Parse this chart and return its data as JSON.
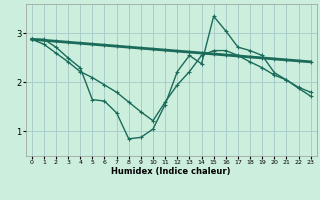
{
  "xlabel": "Humidex (Indice chaleur)",
  "bg_color": "#cceedd",
  "grid_color": "#aacccc",
  "line_color": "#1a6b5a",
  "xlim": [
    -0.5,
    23.5
  ],
  "ylim": [
    0.5,
    3.6
  ],
  "yticks": [
    1,
    2,
    3
  ],
  "xticks": [
    0,
    1,
    2,
    3,
    4,
    5,
    6,
    7,
    8,
    9,
    10,
    11,
    12,
    13,
    14,
    15,
    16,
    17,
    18,
    19,
    20,
    21,
    22,
    23
  ],
  "line1_x": [
    0,
    1,
    2,
    3,
    4,
    5,
    6,
    7,
    8,
    9,
    10,
    11,
    12,
    13,
    14,
    15,
    16,
    17,
    18,
    19,
    20,
    21,
    22,
    23
  ],
  "line1_y": [
    2.88,
    2.86,
    2.84,
    2.82,
    2.8,
    2.78,
    2.76,
    2.74,
    2.72,
    2.7,
    2.68,
    2.66,
    2.64,
    2.62,
    2.6,
    2.58,
    2.56,
    2.54,
    2.52,
    2.5,
    2.48,
    2.46,
    2.44,
    2.42
  ],
  "line2_x": [
    0,
    1,
    2,
    3,
    4,
    5,
    6,
    7,
    8,
    9,
    10,
    11,
    12,
    13,
    14,
    15,
    16,
    17,
    18,
    19,
    20,
    21,
    22,
    23
  ],
  "line2_y": [
    2.88,
    2.78,
    2.6,
    2.42,
    2.22,
    2.1,
    1.95,
    1.8,
    1.6,
    1.4,
    1.22,
    1.6,
    1.95,
    2.22,
    2.55,
    2.65,
    2.65,
    2.55,
    2.42,
    2.3,
    2.15,
    2.05,
    1.9,
    1.8
  ],
  "line3_x": [
    0,
    1,
    2,
    3,
    4,
    5,
    6,
    7,
    8,
    9,
    10,
    11,
    12,
    13,
    14,
    15,
    16,
    17,
    18,
    19,
    20,
    21,
    22,
    23
  ],
  "line3_y": [
    2.88,
    2.88,
    2.72,
    2.5,
    2.3,
    1.65,
    1.62,
    1.38,
    0.85,
    0.88,
    1.05,
    1.55,
    2.22,
    2.55,
    2.38,
    3.35,
    3.05,
    2.72,
    2.65,
    2.55,
    2.2,
    2.05,
    1.88,
    1.72
  ]
}
